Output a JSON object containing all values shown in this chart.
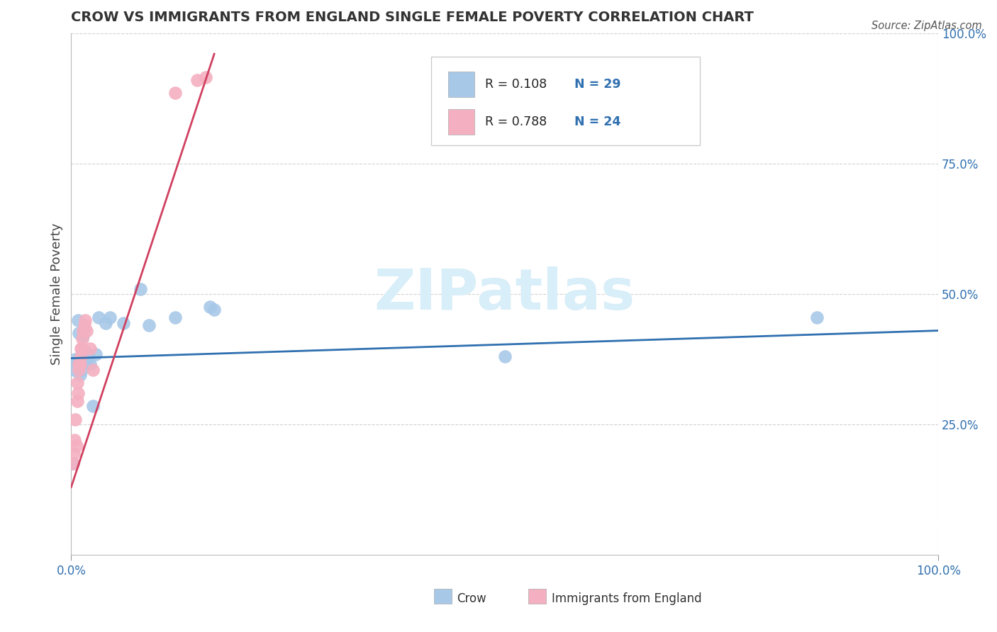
{
  "title": "CROW VS IMMIGRANTS FROM ENGLAND SINGLE FEMALE POVERTY CORRELATION CHART",
  "source": "Source: ZipAtlas.com",
  "ylabel": "Single Female Poverty",
  "background_color": "#ffffff",
  "watermark_text": "ZIPatlas",
  "crow_color": "#a8c8e8",
  "england_color": "#f4b0c0",
  "trend_crow_color": "#3070b0",
  "trend_england_color": "#d04060",
  "crow_scatter_x": [
    0.002,
    0.003,
    0.005,
    0.007,
    0.008,
    0.009,
    0.01,
    0.011,
    0.012,
    0.013,
    0.014,
    0.015,
    0.016,
    0.018,
    0.02,
    0.022,
    0.025,
    0.028,
    0.032,
    0.04,
    0.045,
    0.06,
    0.08,
    0.09,
    0.12,
    0.16,
    0.165,
    0.5,
    0.86
  ],
  "crow_scatter_y": [
    0.175,
    0.355,
    0.375,
    0.37,
    0.45,
    0.425,
    0.345,
    0.365,
    0.355,
    0.385,
    0.42,
    0.435,
    0.39,
    0.37,
    0.38,
    0.365,
    0.285,
    0.385,
    0.455,
    0.445,
    0.455,
    0.445,
    0.51,
    0.44,
    0.455,
    0.475,
    0.47,
    0.38,
    0.455
  ],
  "england_scatter_x": [
    0.002,
    0.003,
    0.004,
    0.005,
    0.006,
    0.007,
    0.007,
    0.008,
    0.009,
    0.009,
    0.01,
    0.011,
    0.011,
    0.012,
    0.013,
    0.014,
    0.015,
    0.016,
    0.018,
    0.022,
    0.025,
    0.12,
    0.145,
    0.155
  ],
  "england_scatter_y": [
    0.175,
    0.195,
    0.22,
    0.26,
    0.21,
    0.295,
    0.33,
    0.31,
    0.355,
    0.365,
    0.365,
    0.38,
    0.395,
    0.395,
    0.415,
    0.43,
    0.44,
    0.45,
    0.43,
    0.395,
    0.355,
    0.885,
    0.91,
    0.915
  ],
  "crow_trend_x": [
    0.0,
    1.0
  ],
  "crow_trend_y": [
    0.377,
    0.43
  ],
  "england_trend_x": [
    0.0,
    0.165
  ],
  "england_trend_y": [
    0.13,
    0.96
  ],
  "xlim": [
    0.0,
    1.0
  ],
  "ylim": [
    0.0,
    1.0
  ],
  "ytick_vals": [
    0.25,
    0.5,
    0.75,
    1.0
  ],
  "ytick_labels": [
    "25.0%",
    "50.0%",
    "75.0%",
    "100.0%"
  ],
  "xtick_vals": [
    0.0,
    1.0
  ],
  "xtick_labels": [
    "0.0%",
    "100.0%"
  ],
  "legend_entries": [
    {
      "label_r": "R = 0.108",
      "label_n": "N = 29",
      "color": "#a8c8e8"
    },
    {
      "label_r": "R = 0.788",
      "label_n": "N = 24",
      "color": "#f4b0c0"
    }
  ],
  "bottom_legend": [
    {
      "label": "Crow",
      "color": "#a8c8e8"
    },
    {
      "label": "Immigrants from England",
      "color": "#f4b0c0"
    }
  ]
}
